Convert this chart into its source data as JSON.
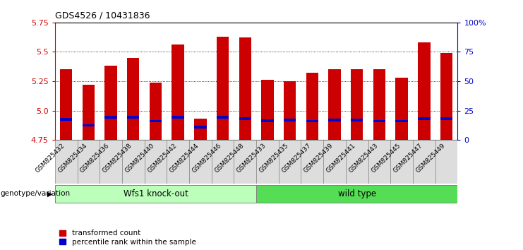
{
  "title": "GDS4526 / 10431836",
  "samples": [
    "GSM825432",
    "GSM825434",
    "GSM825436",
    "GSM825438",
    "GSM825440",
    "GSM825442",
    "GSM825444",
    "GSM825446",
    "GSM825448",
    "GSM825433",
    "GSM825435",
    "GSM825437",
    "GSM825439",
    "GSM825441",
    "GSM825443",
    "GSM825445",
    "GSM825447",
    "GSM825449"
  ],
  "red_values": [
    5.35,
    5.22,
    5.38,
    5.45,
    5.24,
    5.56,
    4.93,
    5.63,
    5.62,
    5.26,
    5.25,
    5.32,
    5.35,
    5.35,
    5.35,
    5.28,
    5.58,
    5.49
  ],
  "blue_values": [
    4.925,
    4.875,
    4.945,
    4.945,
    4.91,
    4.945,
    4.86,
    4.945,
    4.93,
    4.915,
    4.92,
    4.91,
    4.92,
    4.92,
    4.91,
    4.91,
    4.93,
    4.93
  ],
  "ylim": [
    4.75,
    5.75
  ],
  "yticks": [
    4.75,
    5.0,
    5.25,
    5.5,
    5.75
  ],
  "right_yticks": [
    0,
    25,
    50,
    75,
    100
  ],
  "right_ytick_labels": [
    "0",
    "25",
    "50",
    "75",
    "100%"
  ],
  "bar_color": "#cc0000",
  "blue_color": "#0000cc",
  "bar_width": 0.55,
  "group1_label": "Wfs1 knock-out",
  "group2_label": "wild type",
  "group1_color": "#bbffbb",
  "group2_color": "#55dd55",
  "group1_count": 9,
  "group2_count": 9,
  "legend_red": "transformed count",
  "legend_blue": "percentile rank within the sample",
  "genotype_label": "genotype/variation",
  "tick_color_left": "#cc0000",
  "tick_color_right": "#0000cc",
  "cell_color": "#dddddd",
  "cell_border": "#888888"
}
